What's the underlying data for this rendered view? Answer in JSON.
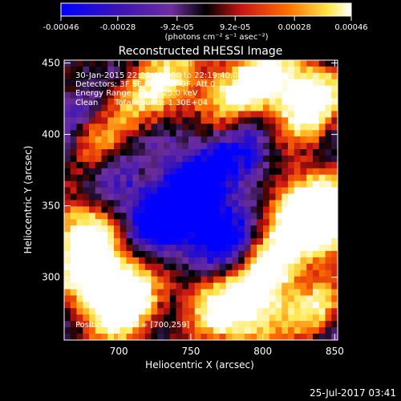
{
  "colorbar": {
    "ticks": [
      "-0.00046",
      "-0.00028",
      "-9.2e-05",
      "9.2e-05",
      "0.00028",
      "0.00046"
    ],
    "tick_values": [
      -0.00046,
      -0.00028,
      -9.2e-05,
      9.2e-05,
      0.00028,
      0.00046
    ],
    "range": [
      -0.00046,
      0.00046
    ],
    "unit_label": "(photons cm⁻² s⁻¹ asec⁻²)"
  },
  "chart_data": {
    "type": "heatmap",
    "title": "Reconstructed RHESSI Image",
    "xlabel": "Heliocentric X (arcsec)",
    "ylabel": "Heliocentric Y (arcsec)",
    "xlim": [
      662,
      852
    ],
    "ylim": [
      256,
      452
    ],
    "xticks": [
      700,
      750,
      800,
      850
    ],
    "yticks": [
      300,
      350,
      400,
      450
    ],
    "colormap": [
      "#0000ff",
      "#3c14b4",
      "#6e2e9e",
      "#000000",
      "#c81414",
      "#ff6e00",
      "#ffe646",
      "#ffffff"
    ],
    "peak": [
      700,
      259
    ],
    "annotations": {
      "time": "30-Jan-2015 22:09:40.000 to 22:19:40.000",
      "detectors": "Detectors: 3F 5F 6F 7F 8F 9F, Att 0",
      "energy": "Energy Range: 12.0 - 25.0 keV",
      "method": "Clean",
      "counts": "Total counts: 1.30E+04",
      "peak_text": "Position of Peak = [700,259]"
    }
  },
  "footer": {
    "timestamp": "25-Jul-2017 03:41"
  }
}
